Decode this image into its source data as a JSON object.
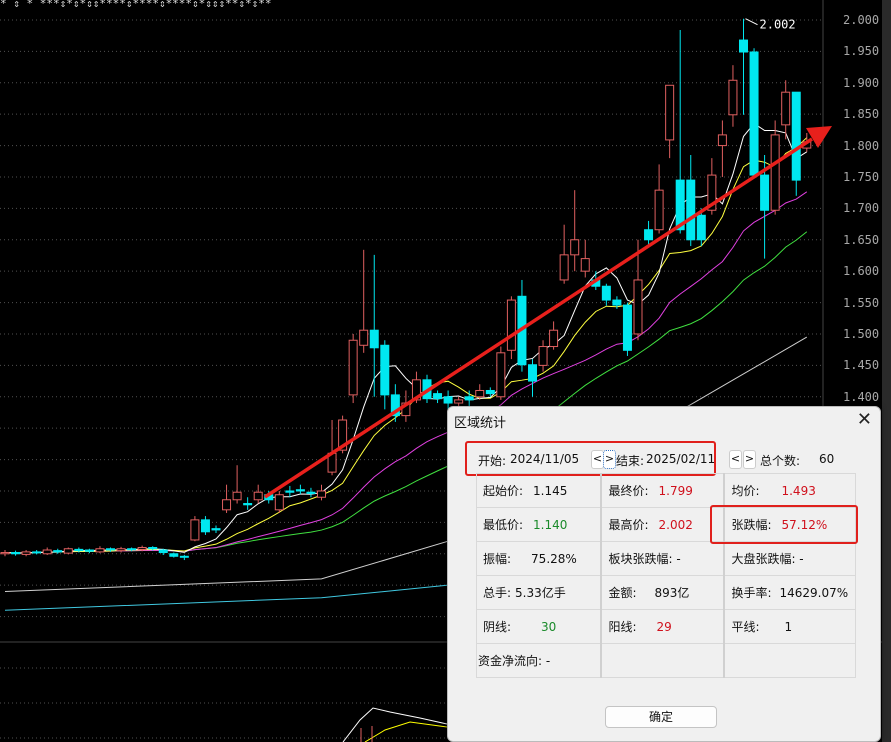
{
  "chart": {
    "y_axis_labels": [
      "2.000",
      "1.950",
      "1.900",
      "1.850",
      "1.800",
      "1.750",
      "1.700",
      "1.650",
      "1.600",
      "1.550",
      "1.500",
      "1.450",
      "1.400"
    ],
    "high_annotation": "2.002",
    "colors": {
      "up": "#e06060",
      "down": "#00e8f0",
      "ma5": "#ffffff",
      "ma10": "#ffff40",
      "ma20": "#e040e0",
      "ma30": "#40e040",
      "ma60": "#d0d0d0",
      "ma120": "#40c8e0",
      "trend_arrow": "#e8201c"
    },
    "top_markers": "*     ⇕               *              ***⇕*⇕*⇕⇕****⇕****⇕****⇕*⇕⇕⇕**⇕*⇕**",
    "candles": [
      [
        1.15,
        1.152,
        1.156,
        1.146
      ],
      [
        1.152,
        1.15,
        1.155,
        1.147
      ],
      [
        1.149,
        1.153,
        1.156,
        1.146
      ],
      [
        1.153,
        1.152,
        1.156,
        1.149
      ],
      [
        1.15,
        1.156,
        1.16,
        1.148
      ],
      [
        1.155,
        1.153,
        1.158,
        1.15
      ],
      [
        1.151,
        1.158,
        1.16,
        1.149
      ],
      [
        1.157,
        1.155,
        1.16,
        1.152
      ],
      [
        1.156,
        1.154,
        1.158,
        1.151
      ],
      [
        1.153,
        1.158,
        1.162,
        1.151
      ],
      [
        1.158,
        1.156,
        1.16,
        1.153
      ],
      [
        1.155,
        1.158,
        1.161,
        1.152
      ],
      [
        1.158,
        1.157,
        1.16,
        1.154
      ],
      [
        1.157,
        1.16,
        1.163,
        1.154
      ],
      [
        1.16,
        1.158,
        1.162,
        1.155
      ],
      [
        1.156,
        1.152,
        1.158,
        1.148
      ],
      [
        1.15,
        1.146,
        1.152,
        1.144
      ],
      [
        1.146,
        1.145,
        1.148,
        1.14
      ],
      [
        1.172,
        1.204,
        1.21,
        1.17
      ],
      [
        1.204,
        1.185,
        1.21,
        1.18
      ],
      [
        1.19,
        1.188,
        1.195,
        1.183
      ],
      [
        1.22,
        1.236,
        1.26,
        1.215
      ],
      [
        1.236,
        1.248,
        1.291,
        1.23
      ],
      [
        1.23,
        1.228,
        1.24,
        1.22
      ],
      [
        1.236,
        1.248,
        1.26,
        1.23
      ],
      [
        1.244,
        1.236,
        1.25,
        1.23
      ],
      [
        1.22,
        1.244,
        1.25,
        1.215
      ],
      [
        1.25,
        1.248,
        1.258,
        1.24
      ],
      [
        1.252,
        1.25,
        1.26,
        1.245
      ],
      [
        1.248,
        1.246,
        1.255,
        1.24
      ],
      [
        1.24,
        1.25,
        1.26,
        1.235
      ],
      [
        1.28,
        1.31,
        1.363,
        1.275
      ],
      [
        1.315,
        1.363,
        1.37,
        1.31
      ],
      [
        1.403,
        1.49,
        1.5,
        1.39
      ],
      [
        1.482,
        1.506,
        1.634,
        1.47
      ],
      [
        1.506,
        1.478,
        1.626,
        1.4
      ],
      [
        1.482,
        1.403,
        1.49,
        1.38
      ],
      [
        1.403,
        1.37,
        1.42,
        1.36
      ],
      [
        1.37,
        1.39,
        1.41,
        1.36
      ],
      [
        1.395,
        1.427,
        1.44,
        1.39
      ],
      [
        1.427,
        1.397,
        1.435,
        1.39
      ],
      [
        1.405,
        1.397,
        1.41,
        1.39
      ],
      [
        1.4,
        1.39,
        1.41,
        1.38
      ],
      [
        1.39,
        1.395,
        1.4,
        1.38
      ],
      [
        1.4,
        1.395,
        1.41,
        1.385
      ],
      [
        1.4,
        1.41,
        1.42,
        1.395
      ],
      [
        1.41,
        1.405,
        1.415,
        1.4
      ],
      [
        1.4,
        1.47,
        1.48,
        1.395
      ],
      [
        1.474,
        1.554,
        1.56,
        1.46
      ],
      [
        1.56,
        1.451,
        1.586,
        1.44
      ],
      [
        1.451,
        1.425,
        1.46,
        1.4
      ],
      [
        1.45,
        1.48,
        1.49,
        1.44
      ],
      [
        1.48,
        1.506,
        1.52,
        1.475
      ],
      [
        1.586,
        1.626,
        1.674,
        1.58
      ],
      [
        1.626,
        1.65,
        1.729,
        1.6
      ],
      [
        1.6,
        1.62,
        1.65,
        1.59
      ],
      [
        1.586,
        1.576,
        1.6,
        1.57
      ],
      [
        1.576,
        1.554,
        1.58,
        1.545
      ],
      [
        1.554,
        1.546,
        1.56,
        1.54
      ],
      [
        1.546,
        1.474,
        1.55,
        1.465
      ],
      [
        1.5,
        1.586,
        1.65,
        1.49
      ],
      [
        1.666,
        1.65,
        1.68,
        1.64
      ],
      [
        1.666,
        1.729,
        1.77,
        1.66
      ],
      [
        1.809,
        1.896,
        1.896,
        1.78
      ],
      [
        1.745,
        1.666,
        1.984,
        1.66
      ],
      [
        1.745,
        1.65,
        1.785,
        1.64
      ],
      [
        1.689,
        1.65,
        1.7,
        1.64
      ],
      [
        1.697,
        1.753,
        1.78,
        1.69
      ],
      [
        1.8,
        1.817,
        1.84,
        1.75
      ],
      [
        1.849,
        1.904,
        1.928,
        1.83
      ],
      [
        1.968,
        1.949,
        2.002,
        1.849
      ],
      [
        1.949,
        1.753,
        1.955,
        1.75
      ],
      [
        1.753,
        1.697,
        1.785,
        1.62
      ],
      [
        1.697,
        1.817,
        1.84,
        1.69
      ],
      [
        1.833,
        1.885,
        1.904,
        1.81
      ],
      [
        1.885,
        1.745,
        1.885,
        1.72
      ],
      [
        1.796,
        1.806,
        1.82,
        1.79
      ]
    ],
    "ma60_line": [
      [
        0,
        1.09
      ],
      [
        30,
        1.11
      ],
      [
        42,
        1.17
      ],
      [
        55,
        1.29
      ],
      [
        76,
        1.495
      ]
    ],
    "ma120_line": [
      [
        0,
        1.06
      ],
      [
        30,
        1.08
      ],
      [
        42,
        1.1
      ],
      [
        55,
        1.17
      ],
      [
        76,
        1.3
      ]
    ]
  },
  "dialog": {
    "title": "区域统计",
    "close_icon": "close-icon",
    "start_label": "开始:",
    "start_date": "2024/11/05",
    "end_label": "结束:",
    "end_date": "2025/02/11",
    "prev": "<",
    "next": ">",
    "count_label": "总个数:",
    "count_value": "60",
    "cells": {
      "open_label": "起始价:",
      "open_value": "1.145",
      "close_label": "最终价:",
      "close_value": "1.799",
      "avg_label": "均价:",
      "avg_value": "1.493",
      "low_label": "最低价:",
      "low_value": "1.140",
      "high_label": "最高价:",
      "high_value": "2.002",
      "change_label": "张跌幅:",
      "change_value": "57.12%",
      "amplitude_label": "振幅:",
      "amplitude_value": "75.28%",
      "sector_label": "板块张跌幅: -",
      "market_label": "大盘张跌幅: -",
      "volume_label": "总手:",
      "volume_value": "5.33亿手",
      "amount_label": "金额:",
      "amount_value": "893亿",
      "turnover_label": "换手率:",
      "turnover_value": "14629.07%",
      "down_label": "阴线:",
      "down_value": "30",
      "up_label": "阳线:",
      "up_value": "29",
      "flat_label": "平线:",
      "flat_value": "1",
      "fund_label": "资金净流向: -"
    },
    "ok_label": "确定"
  }
}
